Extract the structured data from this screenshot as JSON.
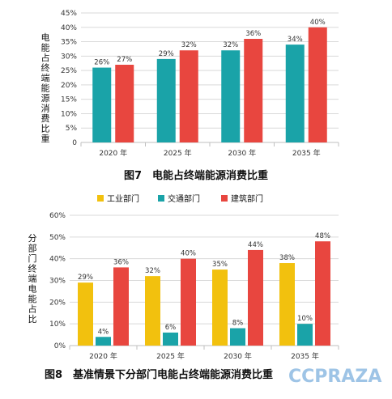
{
  "chart_data": [
    {
      "type": "bar",
      "title": "",
      "ylabel": "电能占终端能源消费比重",
      "caption": "图7　电能占终端能源消费比重",
      "categories": [
        "2020 年",
        "2025 年",
        "2030 年",
        "2035 年"
      ],
      "ylim": [
        0,
        45
      ],
      "yticks": [
        "0",
        "5%",
        "10%",
        "15%",
        "20%",
        "25%",
        "30%",
        "35%",
        "40%",
        "45%"
      ],
      "series": [
        {
          "name": "",
          "color": "#1aa3a8",
          "values": [
            26,
            29,
            32,
            34
          ],
          "labels": [
            "26%",
            "29%",
            "32%",
            "34%"
          ]
        },
        {
          "name": "",
          "color": "#e8463f",
          "values": [
            27,
            32,
            36,
            40
          ],
          "labels": [
            "27%",
            "32%",
            "36%",
            "40%"
          ]
        }
      ],
      "grid": true
    },
    {
      "type": "bar",
      "title": "",
      "ylabel": "分部门终端电能占比",
      "caption": "图8　基准情景下分部门电能占终端能源消费比重",
      "categories": [
        "2020 年",
        "2025 年",
        "2030 年",
        "2035 年"
      ],
      "ylim": [
        0,
        60
      ],
      "yticks": [
        "0%",
        "10%",
        "20%",
        "30%",
        "40%",
        "50%",
        "60%"
      ],
      "legend_position": "top",
      "series": [
        {
          "name": "工业部门",
          "color": "#f2c10e",
          "values": [
            29,
            32,
            35,
            38
          ],
          "labels": [
            "29%",
            "32%",
            "35%",
            "38%"
          ]
        },
        {
          "name": "交通部门",
          "color": "#1aa3a8",
          "values": [
            4,
            6,
            8,
            10
          ],
          "labels": [
            "4%",
            "6%",
            "8%",
            "10%"
          ]
        },
        {
          "name": "建筑部门",
          "color": "#e8463f",
          "values": [
            36,
            40,
            44,
            48
          ],
          "labels": [
            "36%",
            "40%",
            "44%",
            "48%"
          ]
        }
      ],
      "grid": true
    }
  ],
  "watermark": "CCPRAZA"
}
